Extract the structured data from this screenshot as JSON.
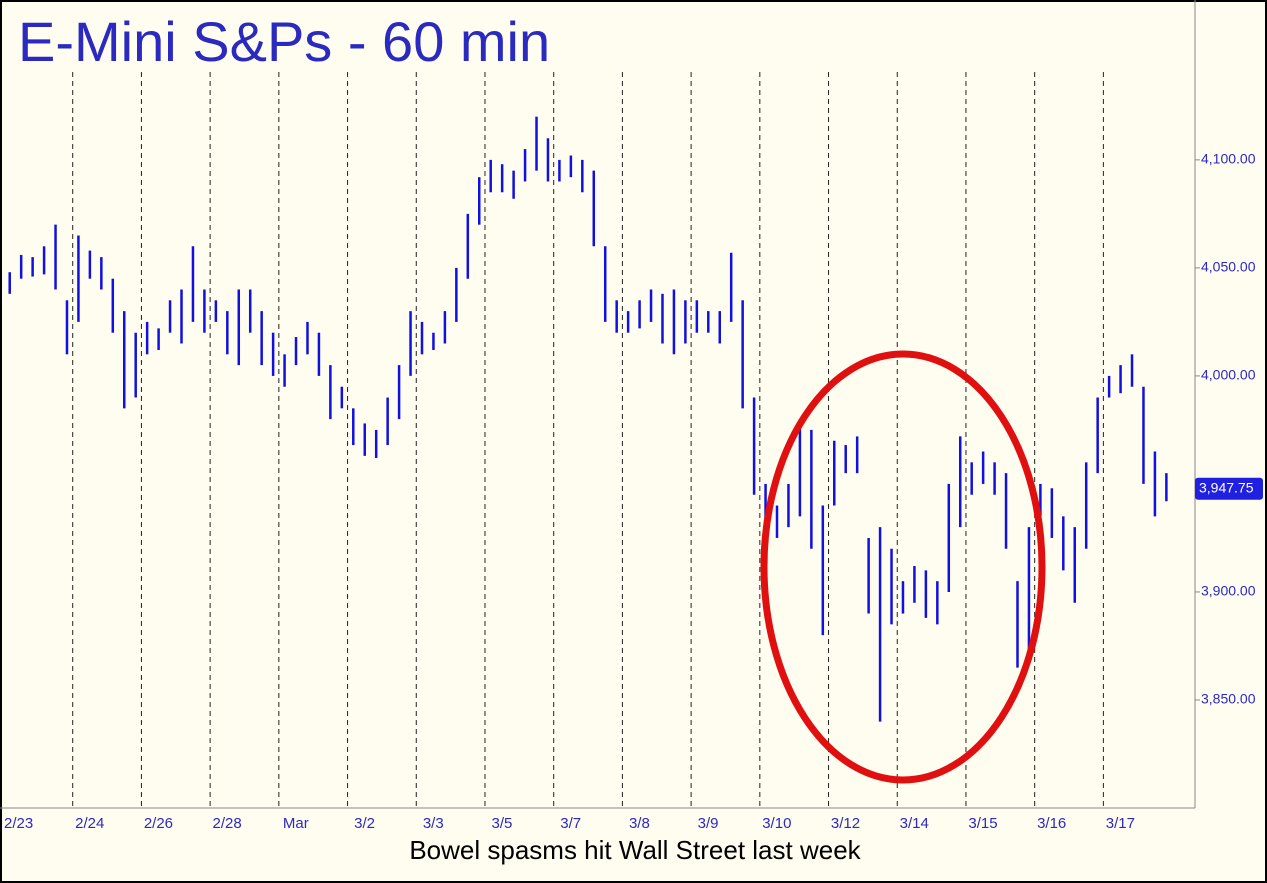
{
  "chart_data": {
    "type": "ohlc",
    "title": "E-Mini S&Ps - 60 min",
    "caption": "Bowel spasms hit Wall Street last week",
    "color": "#1010e0",
    "xlim": [
      0,
      104
    ],
    "xticks": [
      {
        "value": 0,
        "label": "2/23"
      },
      {
        "value": 6,
        "label": "2/24"
      },
      {
        "value": 12,
        "label": "2/26"
      },
      {
        "value": 18,
        "label": "2/28"
      },
      {
        "value": 24,
        "label": "Mar"
      },
      {
        "value": 30,
        "label": "3/2"
      },
      {
        "value": 36,
        "label": "3/3"
      },
      {
        "value": 42,
        "label": "3/5"
      },
      {
        "value": 48,
        "label": "3/7"
      },
      {
        "value": 54,
        "label": "3/8"
      },
      {
        "value": 60,
        "label": "3/9"
      },
      {
        "value": 66,
        "label": "3/10"
      },
      {
        "value": 72,
        "label": "3/12"
      },
      {
        "value": 78,
        "label": "3/14"
      },
      {
        "value": 84,
        "label": "3/15"
      },
      {
        "value": 90,
        "label": "3/16"
      },
      {
        "value": 96,
        "label": "3/17"
      }
    ],
    "ylim": [
      3800,
      4174
    ],
    "yticks": [
      {
        "value": 3850,
        "label": "3,850.00"
      },
      {
        "value": 3900,
        "label": "3,900.00"
      },
      {
        "value": 4000,
        "label": "4,000.00"
      },
      {
        "value": 4050,
        "label": "4,050.00"
      },
      {
        "value": 4100,
        "label": "4,100.00"
      }
    ],
    "last_price": {
      "value": 3947.75,
      "label": "3,947.75"
    },
    "high": [
      4048,
      4056,
      4055,
      4060,
      4070,
      4035,
      4065,
      4058,
      4055,
      4045,
      4030,
      4020,
      4025,
      4022,
      4035,
      4040,
      4060,
      4040,
      4035,
      4030,
      4040,
      4040,
      4030,
      4020,
      4010,
      4018,
      4025,
      4020,
      4005,
      3995,
      3985,
      3978,
      3975,
      3990,
      4005,
      4030,
      4025,
      4020,
      4030,
      4050,
      4075,
      4092,
      4100,
      4098,
      4095,
      4105,
      4120,
      4110,
      4100,
      4102,
      4100,
      4095,
      4060,
      4035,
      4030,
      4035,
      4040,
      4038,
      4040,
      4035,
      4035,
      4030,
      4030,
      4057,
      4035,
      3990,
      3950,
      3940,
      3950,
      3980,
      3975,
      3940,
      3970,
      3968,
      3972,
      3925,
      3930,
      3920,
      3905,
      3912,
      3910,
      3905,
      3950,
      3972,
      3960,
      3965,
      3960,
      3955,
      3905,
      3930,
      3950,
      3948,
      3935,
      3930,
      3960,
      3990,
      4000,
      4005,
      4010,
      3995,
      3965,
      3955
    ],
    "low": [
      4038,
      4045,
      4046,
      4047,
      4040,
      4010,
      4025,
      4045,
      4040,
      4020,
      3985,
      3990,
      4010,
      4012,
      4020,
      4015,
      4025,
      4020,
      4025,
      4010,
      4005,
      4020,
      4005,
      4000,
      3995,
      4005,
      4010,
      4000,
      3980,
      3985,
      3968,
      3963,
      3962,
      3968,
      3980,
      4000,
      4010,
      4012,
      4015,
      4025,
      4045,
      4070,
      4085,
      4085,
      4082,
      4090,
      4095,
      4090,
      4090,
      4092,
      4085,
      4060,
      4025,
      4020,
      4020,
      4022,
      4025,
      4015,
      4010,
      4015,
      4020,
      4020,
      4015,
      4025,
      3985,
      3945,
      3930,
      3925,
      3930,
      3935,
      3920,
      3880,
      3940,
      3955,
      3955,
      3890,
      3840,
      3885,
      3890,
      3895,
      3888,
      3885,
      3900,
      3930,
      3945,
      3950,
      3945,
      3920,
      3865,
      3870,
      3935,
      3925,
      3910,
      3895,
      3920,
      3955,
      3990,
      3992,
      3995,
      3950,
      3935,
      3942
    ]
  }
}
